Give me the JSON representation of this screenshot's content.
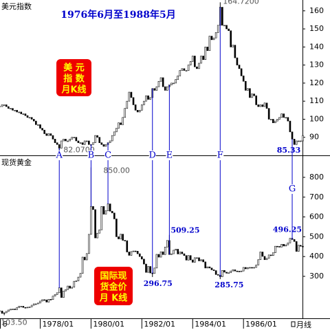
{
  "chart_data": [
    {
      "type": "candlestick",
      "title": "美元指数",
      "subtitle": "1976年6月至1988年5月",
      "badge": [
        "美 元",
        "指 数",
        "月K线"
      ],
      "x": [
        "1976/06",
        "1976/07",
        "1976/08",
        "1976/09",
        "1976/10",
        "1976/11",
        "1976/12",
        "1977/01",
        "1977/02",
        "1977/03",
        "1977/04",
        "1977/05",
        "1977/06",
        "1977/07",
        "1977/08",
        "1977/09",
        "1977/10",
        "1977/11",
        "1977/12",
        "1978/01",
        "1978/02",
        "1978/03",
        "1978/04",
        "1978/05",
        "1978/06",
        "1978/07",
        "1978/08",
        "1978/09",
        "1978/10",
        "1978/11",
        "1978/12",
        "1979/01",
        "1979/02",
        "1979/03",
        "1979/04",
        "1979/05",
        "1979/06",
        "1979/07",
        "1979/08",
        "1979/09",
        "1979/10",
        "1979/11",
        "1979/12",
        "1980/01",
        "1980/02",
        "1980/03",
        "1980/04",
        "1980/05",
        "1980/06",
        "1980/07",
        "1980/08",
        "1980/09",
        "1980/10",
        "1980/11",
        "1980/12",
        "1981/01",
        "1981/02",
        "1981/03",
        "1981/04",
        "1981/05",
        "1981/06",
        "1981/07",
        "1981/08",
        "1981/09",
        "1981/10",
        "1981/11",
        "1981/12",
        "1982/01",
        "1982/02",
        "1982/03",
        "1982/04",
        "1982/05",
        "1982/06",
        "1982/07",
        "1982/08",
        "1982/09",
        "1982/10",
        "1982/11",
        "1982/12",
        "1983/01",
        "1983/02",
        "1983/03",
        "1983/04",
        "1983/05",
        "1983/06",
        "1983/07",
        "1983/08",
        "1983/09",
        "1983/10",
        "1983/11",
        "1983/12",
        "1984/01",
        "1984/02",
        "1984/03",
        "1984/04",
        "1984/05",
        "1984/06",
        "1984/07",
        "1984/08",
        "1984/09",
        "1984/10",
        "1984/11",
        "1984/12",
        "1985/01",
        "1985/02",
        "1985/03",
        "1985/04",
        "1985/05",
        "1985/06",
        "1985/07",
        "1985/08",
        "1985/09",
        "1985/10",
        "1985/11",
        "1985/12",
        "1986/01",
        "1986/02",
        "1986/03",
        "1986/04",
        "1986/05",
        "1986/06",
        "1986/07",
        "1986/08",
        "1986/09",
        "1986/10",
        "1986/11",
        "1986/12",
        "1987/01",
        "1987/02",
        "1987/03",
        "1987/04",
        "1987/05",
        "1987/06",
        "1987/07",
        "1987/08",
        "1987/09",
        "1987/10",
        "1987/11",
        "1987/12",
        "1988/01",
        "1988/02",
        "1988/03",
        "1988/04",
        "1988/05"
      ],
      "values": [
        107,
        108,
        108,
        107,
        106,
        106,
        105,
        105,
        104,
        104,
        103,
        103,
        102,
        101,
        101,
        100,
        99,
        97,
        97,
        95,
        94,
        92,
        91,
        92,
        91,
        89,
        87,
        86,
        84,
        88,
        89,
        88,
        88,
        89,
        90,
        90,
        88,
        87,
        87,
        86,
        88,
        88,
        86,
        86,
        87,
        91,
        90,
        87,
        86,
        85,
        86,
        87,
        88,
        91,
        93,
        95,
        98,
        97,
        101,
        106,
        110,
        115,
        112,
        108,
        105,
        104,
        105,
        108,
        110,
        113,
        111,
        112,
        117,
        116,
        118,
        121,
        123,
        118,
        116,
        118,
        119,
        120,
        120,
        122,
        124,
        127,
        128,
        127,
        127,
        130,
        132,
        135,
        129,
        128,
        131,
        135,
        133,
        140,
        138,
        146,
        144,
        145,
        148,
        152,
        162,
        152,
        152,
        150,
        149,
        140,
        141,
        134,
        130,
        128,
        124,
        121,
        116,
        117,
        112,
        114,
        113,
        108,
        107,
        108,
        107,
        109,
        106,
        100,
        100,
        98,
        99,
        100,
        101,
        103,
        101,
        101,
        99,
        93,
        89,
        86,
        88,
        88,
        88,
        91
      ],
      "color": "#000000",
      "up_color": "#ffffff",
      "ylim": [
        80,
        166
      ],
      "yticks": [
        90,
        100,
        110,
        120,
        130,
        140,
        150,
        160
      ],
      "annotations": [
        {
          "value": 164.72,
          "label": "164.7200",
          "x": "1985/02",
          "color": "#555555"
        },
        {
          "value": 82.07,
          "label": "82.0700",
          "x": "1978/10",
          "color": "#555555"
        },
        {
          "value": 85.33,
          "label": "85.33",
          "x": "1987/12",
          "color": "#0000cc"
        }
      ],
      "markers": [
        {
          "label": "A",
          "x": "1978/10"
        },
        {
          "label": "B",
          "x": "1980/01"
        },
        {
          "label": "C",
          "x": "1980/09"
        },
        {
          "label": "D",
          "x": "1982/06"
        },
        {
          "label": "E",
          "x": "1983/02"
        },
        {
          "label": "F",
          "x": "1985/02"
        },
        {
          "label": "G",
          "x": "1987/12"
        }
      ],
      "marker_color": "#0000cc"
    },
    {
      "type": "candlestick",
      "title": "现货黄金",
      "badge": [
        "国际现",
        "货金价",
        "月 K线"
      ],
      "x": [
        "1976/06",
        "1976/07",
        "1976/08",
        "1976/09",
        "1976/10",
        "1976/11",
        "1976/12",
        "1977/01",
        "1977/02",
        "1977/03",
        "1977/04",
        "1977/05",
        "1977/06",
        "1977/07",
        "1977/08",
        "1977/09",
        "1977/10",
        "1977/11",
        "1977/12",
        "1978/01",
        "1978/02",
        "1978/03",
        "1978/04",
        "1978/05",
        "1978/06",
        "1978/07",
        "1978/08",
        "1978/09",
        "1978/10",
        "1978/11",
        "1978/12",
        "1979/01",
        "1979/02",
        "1979/03",
        "1979/04",
        "1979/05",
        "1979/06",
        "1979/07",
        "1979/08",
        "1979/09",
        "1979/10",
        "1979/11",
        "1979/12",
        "1980/01",
        "1980/02",
        "1980/03",
        "1980/04",
        "1980/05",
        "1980/06",
        "1980/07",
        "1980/08",
        "1980/09",
        "1980/10",
        "1980/11",
        "1980/12",
        "1981/01",
        "1981/02",
        "1981/03",
        "1981/04",
        "1981/05",
        "1981/06",
        "1981/07",
        "1981/08",
        "1981/09",
        "1981/10",
        "1981/11",
        "1981/12",
        "1982/01",
        "1982/02",
        "1982/03",
        "1982/04",
        "1982/05",
        "1982/06",
        "1982/07",
        "1982/08",
        "1982/09",
        "1982/10",
        "1982/11",
        "1982/12",
        "1983/01",
        "1983/02",
        "1983/03",
        "1983/04",
        "1983/05",
        "1983/06",
        "1983/07",
        "1983/08",
        "1983/09",
        "1983/10",
        "1983/11",
        "1983/12",
        "1984/01",
        "1984/02",
        "1984/03",
        "1984/04",
        "1984/05",
        "1984/06",
        "1984/07",
        "1984/08",
        "1984/09",
        "1984/10",
        "1984/11",
        "1984/12",
        "1985/01",
        "1985/02",
        "1985/03",
        "1985/04",
        "1985/05",
        "1985/06",
        "1985/07",
        "1985/08",
        "1985/09",
        "1985/10",
        "1985/11",
        "1985/12",
        "1986/01",
        "1986/02",
        "1986/03",
        "1986/04",
        "1986/05",
        "1986/06",
        "1986/07",
        "1986/08",
        "1986/09",
        "1986/10",
        "1986/11",
        "1986/12",
        "1987/01",
        "1987/02",
        "1987/03",
        "1987/04",
        "1987/05",
        "1987/06",
        "1987/07",
        "1987/08",
        "1987/09",
        "1987/10",
        "1987/11",
        "1987/12",
        "1988/01",
        "1988/02",
        "1988/03",
        "1988/04",
        "1988/05"
      ],
      "values": [
        125,
        113,
        116,
        123,
        130,
        134,
        135,
        132,
        142,
        149,
        149,
        143,
        141,
        144,
        146,
        154,
        161,
        161,
        165,
        175,
        182,
        181,
        170,
        184,
        183,
        200,
        208,
        217,
        242,
        193,
        226,
        233,
        251,
        240,
        245,
        275,
        277,
        296,
        315,
        397,
        383,
        415,
        512,
        653,
        637,
        494,
        518,
        535,
        653,
        614,
        631,
        666,
        629,
        620,
        590,
        500,
        489,
        513,
        482,
        480,
        423,
        406,
        425,
        428,
        427,
        414,
        400,
        387,
        362,
        320,
        350,
        317,
        315,
        342,
        411,
        397,
        424,
        410,
        448,
        481,
        410,
        414,
        432,
        437,
        413,
        423,
        414,
        405,
        382,
        405,
        383,
        371,
        394,
        394,
        378,
        384,
        373,
        342,
        348,
        342,
        333,
        329,
        309,
        306,
        298,
        330,
        321,
        316,
        318,
        327,
        333,
        327,
        326,
        325,
        327,
        345,
        338,
        344,
        345,
        343,
        345,
        357,
        384,
        423,
        401,
        384,
        391,
        408,
        405,
        419,
        452,
        451,
        448,
        462,
        453,
        459,
        469,
        492,
        486,
        476,
        426,
        457,
        452,
        451
      ],
      "color": "#000000",
      "up_color": "#ffffff",
      "ylim": [
        88,
        904
      ],
      "yticks": [
        300,
        400,
        500,
        600,
        700,
        800
      ],
      "xticks": [
        {
          "value": "1976/06",
          "label": "6"
        },
        "1978/01",
        "1980/01",
        "1982/01",
        "1984/01",
        "1986/01"
      ],
      "period_label": "月线",
      "annotations": [
        {
          "value": 850.0,
          "label": "850.00",
          "x": "1980/01",
          "color": "#555555"
        },
        {
          "value": 509.25,
          "label": "509.25",
          "x": "1983/02",
          "color": "#0000cc"
        },
        {
          "value": 296.75,
          "label": "296.75",
          "x": "1982/06",
          "color": "#0000cc"
        },
        {
          "value": 285.75,
          "label": "285.75",
          "x": "1985/02",
          "color": "#0000cc"
        },
        {
          "value": 496.25,
          "label": "496.25",
          "x": "1987/12",
          "color": "#0000cc"
        },
        {
          "value": 103.5,
          "label": "103.50",
          "x": "1976/08",
          "color": "#555555"
        }
      ]
    }
  ]
}
